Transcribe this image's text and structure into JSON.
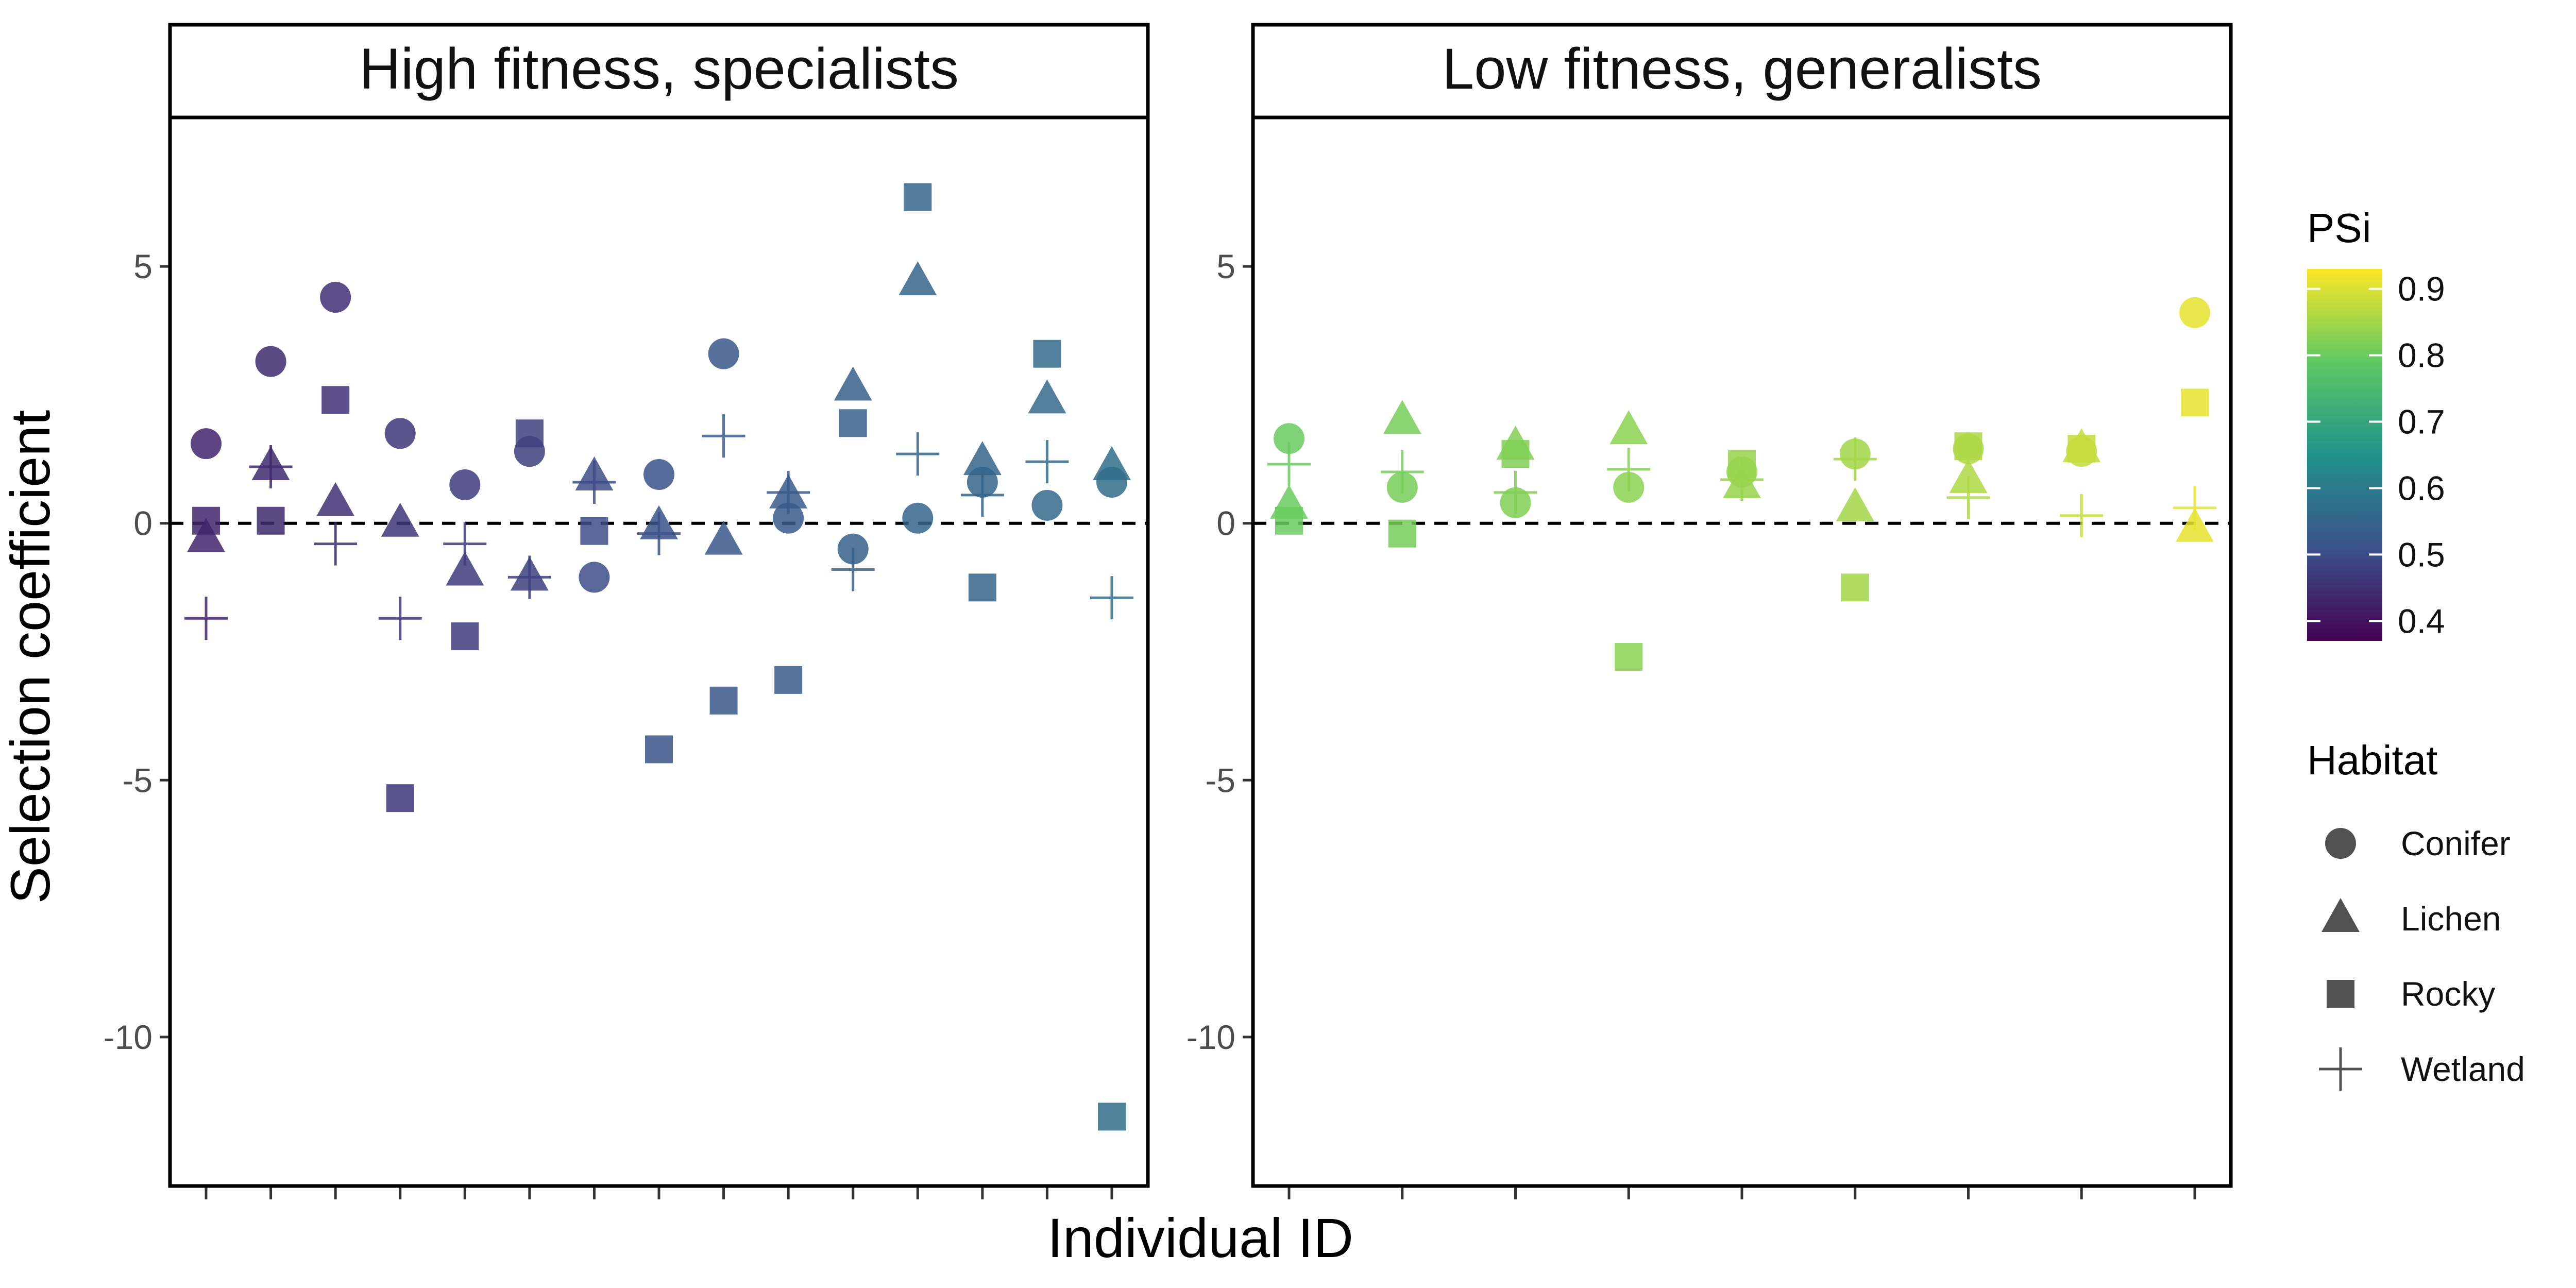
{
  "chart_data": {
    "type": "scatter",
    "xlabel": "Individual ID",
    "ylabel": "Selection coefficient",
    "ylim": [
      -12.9,
      7.9
    ],
    "yticks": [
      5,
      0,
      -5,
      -10
    ],
    "reference_line": {
      "y": 0,
      "style": "dashed"
    },
    "grid": false,
    "colorbar": {
      "title": "PSi",
      "palette": "viridis",
      "range": [
        0.37,
        0.93
      ],
      "ticks": [
        0.9,
        0.8,
        0.7,
        0.6,
        0.5,
        0.4
      ],
      "colors": [
        "#440154",
        "#3b528b",
        "#21918c",
        "#5ec962",
        "#fde725"
      ]
    },
    "shape_legend": {
      "title": "Habitat",
      "placement": "right",
      "items": [
        {
          "label": "Conifer",
          "shape": "circle"
        },
        {
          "label": "Lichen",
          "shape": "triangle"
        },
        {
          "label": "Rocky",
          "shape": "square"
        },
        {
          "label": "Wetland",
          "shape": "plus"
        }
      ]
    },
    "panels": [
      {
        "title": "High fitness, specialists",
        "n_individuals": 15,
        "points": [
          {
            "id": 1,
            "psi": 0.43,
            "Conifer": 1.55,
            "Lichen": -0.3,
            "Rocky": 0.05,
            "Wetland": -1.85
          },
          {
            "id": 2,
            "psi": 0.44,
            "Conifer": 3.15,
            "Lichen": 1.1,
            "Rocky": 0.05,
            "Wetland": 1.1
          },
          {
            "id": 3,
            "psi": 0.45,
            "Conifer": 4.4,
            "Lichen": 0.4,
            "Rocky": 2.4,
            "Wetland": -0.4
          },
          {
            "id": 4,
            "psi": 0.46,
            "Conifer": 1.75,
            "Lichen": 0.0,
            "Rocky": -5.35,
            "Wetland": -1.85
          },
          {
            "id": 5,
            "psi": 0.47,
            "Conifer": 0.75,
            "Lichen": -0.95,
            "Rocky": -2.2,
            "Wetland": -0.4
          },
          {
            "id": 6,
            "psi": 0.48,
            "Conifer": 1.4,
            "Lichen": -1.05,
            "Rocky": 1.75,
            "Wetland": -1.05
          },
          {
            "id": 7,
            "psi": 0.5,
            "Conifer": -1.05,
            "Lichen": 0.9,
            "Rocky": -0.15,
            "Wetland": 0.8
          },
          {
            "id": 8,
            "psi": 0.51,
            "Conifer": 0.95,
            "Lichen": -0.05,
            "Rocky": -4.4,
            "Wetland": -0.2
          },
          {
            "id": 9,
            "psi": 0.52,
            "Conifer": 3.3,
            "Lichen": -0.35,
            "Rocky": -3.45,
            "Wetland": 1.7
          },
          {
            "id": 10,
            "psi": 0.53,
            "Conifer": 0.1,
            "Lichen": 0.55,
            "Rocky": -3.05,
            "Wetland": 0.6
          },
          {
            "id": 11,
            "psi": 0.54,
            "Conifer": -0.5,
            "Lichen": 2.65,
            "Rocky": 1.95,
            "Wetland": -0.9
          },
          {
            "id": 12,
            "psi": 0.55,
            "Conifer": 0.1,
            "Lichen": 4.7,
            "Rocky": 6.35,
            "Wetland": 1.35
          },
          {
            "id": 13,
            "psi": 0.55,
            "Conifer": 0.8,
            "Lichen": 1.2,
            "Rocky": -1.25,
            "Wetland": 0.55
          },
          {
            "id": 14,
            "psi": 0.56,
            "Conifer": 0.35,
            "Lichen": 2.4,
            "Rocky": 3.3,
            "Wetland": 1.2
          },
          {
            "id": 15,
            "psi": 0.57,
            "Conifer": 0.8,
            "Lichen": 1.1,
            "Rocky": -11.55,
            "Wetland": -1.45
          }
        ]
      },
      {
        "title": "Low fitness, generalists",
        "n_individuals": 9,
        "points": [
          {
            "id": 1,
            "psi": 0.8,
            "Conifer": 1.65,
            "Lichen": 0.35,
            "Rocky": 0.05,
            "Wetland": 1.15
          },
          {
            "id": 2,
            "psi": 0.81,
            "Conifer": 0.7,
            "Lichen": 2.0,
            "Rocky": -0.2,
            "Wetland": 1.0
          },
          {
            "id": 3,
            "psi": 0.82,
            "Conifer": 0.4,
            "Lichen": 1.5,
            "Rocky": 1.35,
            "Wetland": 0.6
          },
          {
            "id": 4,
            "psi": 0.83,
            "Conifer": 0.7,
            "Lichen": 1.8,
            "Rocky": -2.6,
            "Wetland": 1.05
          },
          {
            "id": 5,
            "psi": 0.84,
            "Conifer": 1.0,
            "Lichen": 0.75,
            "Rocky": 1.15,
            "Wetland": 0.85
          },
          {
            "id": 6,
            "psi": 0.85,
            "Conifer": 1.35,
            "Lichen": 0.3,
            "Rocky": -1.25,
            "Wetland": 1.25
          },
          {
            "id": 7,
            "psi": 0.86,
            "Conifer": 1.45,
            "Lichen": 0.85,
            "Rocky": 1.5,
            "Wetland": 0.5
          },
          {
            "id": 8,
            "psi": 0.88,
            "Conifer": 1.4,
            "Lichen": 1.45,
            "Rocky": 1.45,
            "Wetland": 0.15
          },
          {
            "id": 9,
            "psi": 0.91,
            "Conifer": 4.1,
            "Lichen": -0.1,
            "Rocky": 2.35,
            "Wetland": 0.3
          }
        ]
      }
    ]
  }
}
